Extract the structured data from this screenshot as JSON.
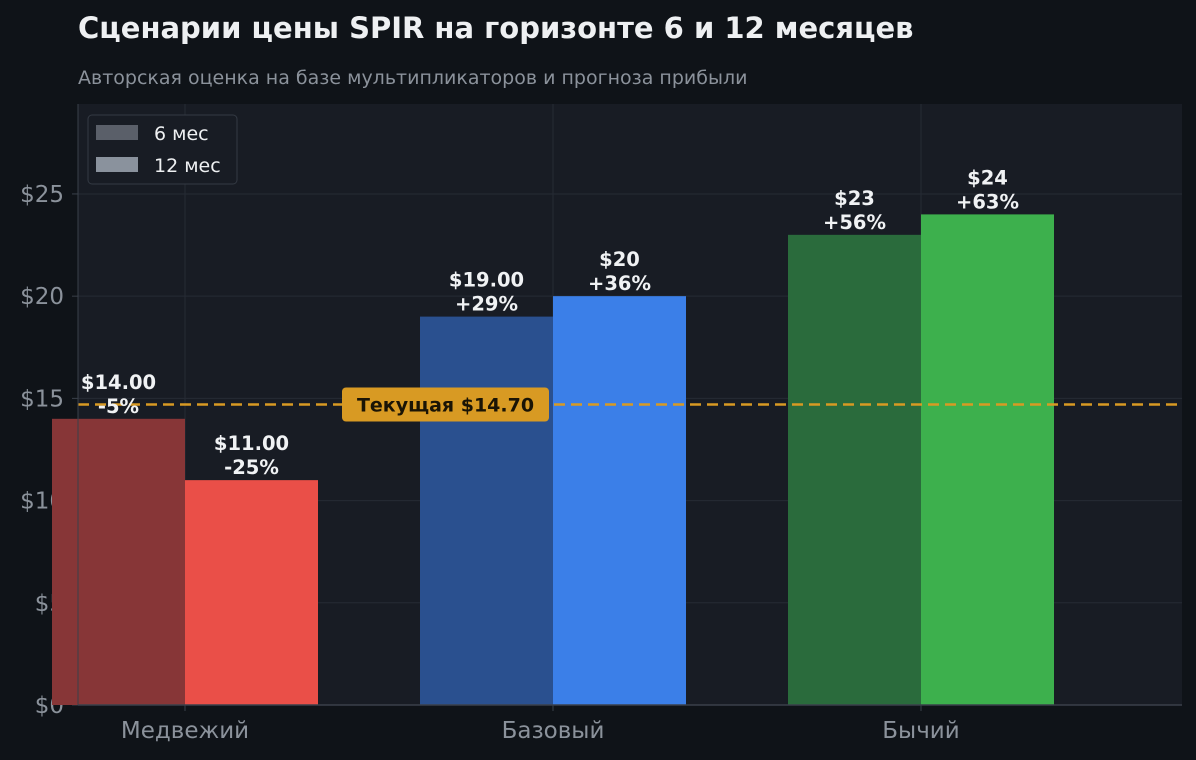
{
  "title": "Сценарии цены SPIR на горизонте 6 и 12 месяцев",
  "subtitle": "Авторская оценка на базе мультипликаторов и прогноза прибыли",
  "chart_data": {
    "type": "bar",
    "categories": [
      "Медвежий",
      "Базовый",
      "Бычий"
    ],
    "series": [
      {
        "name": "6 мес",
        "values": [
          14,
          19,
          23
        ],
        "labels": [
          "$14.00",
          "$19.00",
          "$23"
        ],
        "pct": [
          "-5%",
          "+29%",
          "+56%"
        ],
        "colors": [
          "#873637",
          "#2a508f",
          "#2a6b3c"
        ]
      },
      {
        "name": "12 мес",
        "values": [
          11,
          20,
          24
        ],
        "labels": [
          "$11.00",
          "$20",
          "$24"
        ],
        "pct": [
          "-25%",
          "+36%",
          "+63%"
        ],
        "colors": [
          "#ea4f48",
          "#3b7fe8",
          "#3db04d"
        ]
      }
    ],
    "yticks": [
      0,
      5,
      10,
      15,
      20,
      25
    ],
    "ytick_labels": [
      "$0",
      "$5",
      "$10",
      "$15",
      "$20",
      "$25"
    ],
    "ylim": [
      0,
      29.4
    ],
    "reference_line": {
      "value": 14.7,
      "label": "Текущая $14.70",
      "color": "#d89a23"
    },
    "grid": true,
    "legend_position": "top-left",
    "legend_colors": [
      "#5a5f69",
      "#8a929d"
    ]
  }
}
